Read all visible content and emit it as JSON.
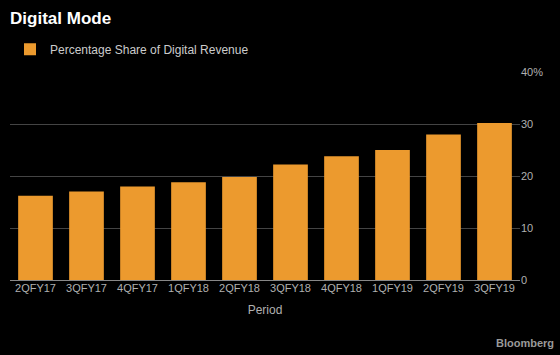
{
  "chart_data": {
    "type": "bar",
    "title": "Digital Mode",
    "x_label": "Period",
    "source": "Bloomberg",
    "categories": [
      "2QFY17",
      "3QFY17",
      "4QFY17",
      "1QFY18",
      "2QFY18",
      "3QFY18",
      "4QFY18",
      "1QFY19",
      "2QFY19",
      "3QFY19"
    ],
    "series": [
      {
        "name": "Percentage Share of Digital Revenue",
        "color": "#ec9a2e",
        "values": [
          16.2,
          17,
          18,
          18.8,
          19.8,
          22.2,
          23.8,
          25,
          28,
          30.2
        ]
      }
    ],
    "ylim": [
      0,
      40
    ],
    "yticks": [
      0,
      10,
      20,
      30,
      {
        "value": 40,
        "label": "40%"
      }
    ],
    "grid": true,
    "legend": "top-left"
  }
}
